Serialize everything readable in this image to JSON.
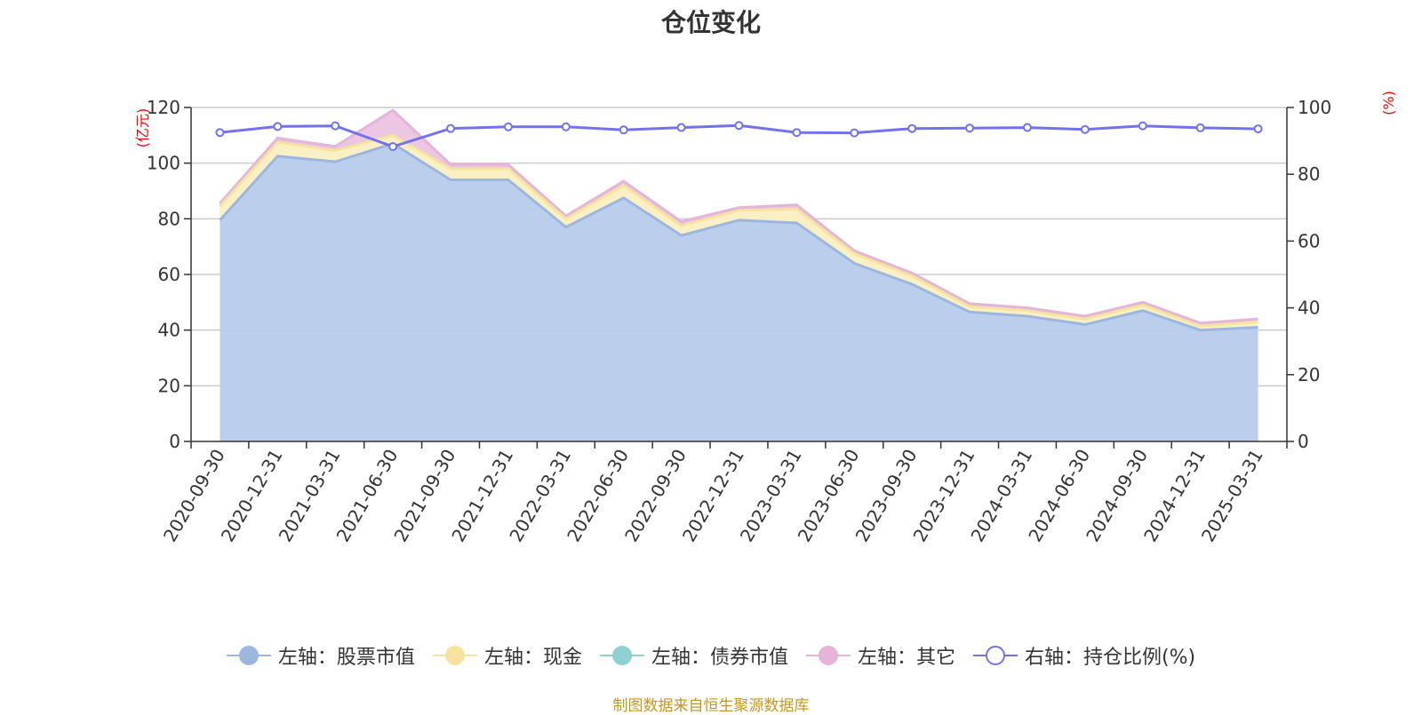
{
  "chart_data": {
    "type": "area",
    "title": "仓位变化",
    "x": [
      "2020-09-30",
      "2020-12-31",
      "2021-03-31",
      "2021-06-30",
      "2021-09-30",
      "2021-12-31",
      "2022-03-31",
      "2022-06-30",
      "2022-09-30",
      "2022-12-31",
      "2023-03-31",
      "2023-06-30",
      "2023-09-30",
      "2023-12-31",
      "2024-03-31",
      "2024-06-30",
      "2024-09-30",
      "2024-12-31",
      "2025-03-31"
    ],
    "stacked": true,
    "y_left": {
      "unit": "(亿元)",
      "range": [
        0,
        120
      ],
      "ticks": [
        0,
        20,
        40,
        60,
        80,
        100,
        120
      ]
    },
    "y_right": {
      "unit": "(%)",
      "range": [
        0,
        100
      ],
      "ticks": [
        0,
        20,
        40,
        60,
        80,
        100
      ]
    },
    "series": [
      {
        "name": "左轴：股票市值",
        "axis": "left",
        "type": "area",
        "color": "#9bb7e0",
        "fill": "#b7cceb",
        "values": [
          79.5,
          102.5,
          100.5,
          107,
          94,
          94,
          77,
          87.5,
          74,
          79.5,
          78.5,
          64,
          56.5,
          46.5,
          45,
          42,
          47,
          40,
          41
        ]
      },
      {
        "name": "左轴：现金",
        "axis": "left",
        "type": "area",
        "color": "#f7e3a0",
        "fill": "#fbefc0",
        "values": [
          5,
          5,
          4,
          3,
          4,
          4,
          3,
          4.5,
          3.5,
          3.5,
          5,
          3.5,
          3,
          2,
          2,
          2,
          2,
          1.5,
          2
        ]
      },
      {
        "name": "左轴：债券市值",
        "axis": "left",
        "type": "area",
        "color": "#8fd0d0",
        "fill": "#b9e3e3",
        "values": [
          0,
          0,
          0,
          0,
          0,
          0,
          0,
          0,
          0,
          0,
          0,
          0,
          0,
          0,
          0,
          0,
          0,
          0,
          0
        ]
      },
      {
        "name": "左轴：其它",
        "axis": "left",
        "type": "area",
        "color": "#e6b3d9",
        "fill": "#ecc3e0",
        "values": [
          1,
          1.5,
          1.5,
          9,
          1.5,
          1.5,
          1,
          1.5,
          1.5,
          1,
          1.5,
          1,
          1,
          1,
          1,
          1,
          1,
          1,
          1
        ]
      },
      {
        "name": "右轴：持仓比例(%)",
        "axis": "right",
        "type": "line",
        "color": "#7272ee",
        "values": [
          92.5,
          94.3,
          94.5,
          88.3,
          93.7,
          94.2,
          94.2,
          93.3,
          94.0,
          94.6,
          92.5,
          92.4,
          93.7,
          93.8,
          94.0,
          93.4,
          94.5,
          93.9,
          93.6
        ]
      }
    ],
    "legend_position": "bottom",
    "grid": true
  },
  "source_note": "制图数据来自恒生聚源数据库"
}
